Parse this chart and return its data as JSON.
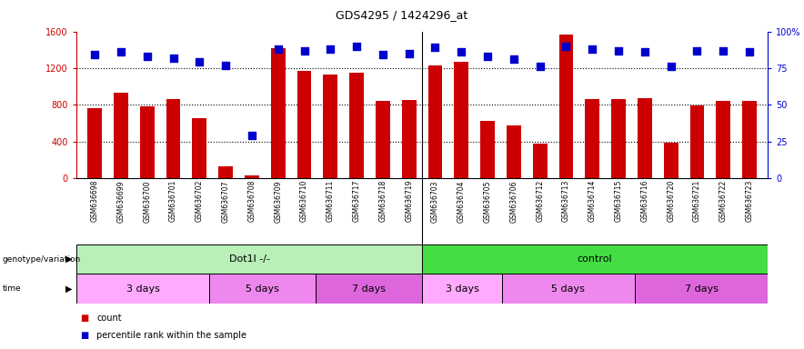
{
  "title": "GDS4295 / 1424296_at",
  "samples": [
    "GSM636698",
    "GSM636699",
    "GSM636700",
    "GSM636701",
    "GSM636702",
    "GSM636707",
    "GSM636708",
    "GSM636709",
    "GSM636710",
    "GSM636711",
    "GSM636717",
    "GSM636718",
    "GSM636719",
    "GSM636703",
    "GSM636704",
    "GSM636705",
    "GSM636706",
    "GSM636712",
    "GSM636713",
    "GSM636714",
    "GSM636715",
    "GSM636716",
    "GSM636720",
    "GSM636721",
    "GSM636722",
    "GSM636723"
  ],
  "counts": [
    760,
    930,
    780,
    860,
    650,
    130,
    30,
    1420,
    1170,
    1130,
    1150,
    840,
    850,
    1230,
    1270,
    620,
    570,
    380,
    1570,
    860,
    860,
    870,
    390,
    790,
    840,
    840
  ],
  "percentile_ranks": [
    84,
    86,
    83,
    82,
    79,
    77,
    29,
    88,
    87,
    88,
    90,
    84,
    85,
    89,
    86,
    83,
    81,
    76,
    90,
    88,
    87,
    86,
    76,
    87,
    87,
    86
  ],
  "bar_color": "#cc0000",
  "dot_color": "#0000cc",
  "ylim_left": [
    0,
    1600
  ],
  "ylim_right": [
    0,
    100
  ],
  "yticks_left": [
    0,
    400,
    800,
    1200,
    1600
  ],
  "yticks_right": [
    0,
    25,
    50,
    75,
    100
  ],
  "hgrid_values": [
    400,
    800,
    1200
  ],
  "genotype_groups": [
    {
      "label": "Dot1l -/-",
      "start": 0,
      "end": 13,
      "color": "#b8f0b8"
    },
    {
      "label": "control",
      "start": 13,
      "end": 26,
      "color": "#44dd44"
    }
  ],
  "time_groups": [
    {
      "label": "3 days",
      "start": 0,
      "end": 5,
      "color": "#ffaaff"
    },
    {
      "label": "5 days",
      "start": 5,
      "end": 9,
      "color": "#ee88ee"
    },
    {
      "label": "7 days",
      "start": 9,
      "end": 13,
      "color": "#dd66dd"
    },
    {
      "label": "3 days",
      "start": 13,
      "end": 16,
      "color": "#ffaaff"
    },
    {
      "label": "5 days",
      "start": 16,
      "end": 21,
      "color": "#ee88ee"
    },
    {
      "label": "7 days",
      "start": 21,
      "end": 26,
      "color": "#dd66dd"
    }
  ],
  "legend_count_label": "count",
  "legend_pct_label": "percentile rank within the sample",
  "genotype_label": "genotype/variation",
  "time_label": "time",
  "background_color": "#ffffff",
  "bar_width": 0.55,
  "dot_size": 28,
  "xtick_bg_color": "#cccccc",
  "pct_top_label": "100%"
}
